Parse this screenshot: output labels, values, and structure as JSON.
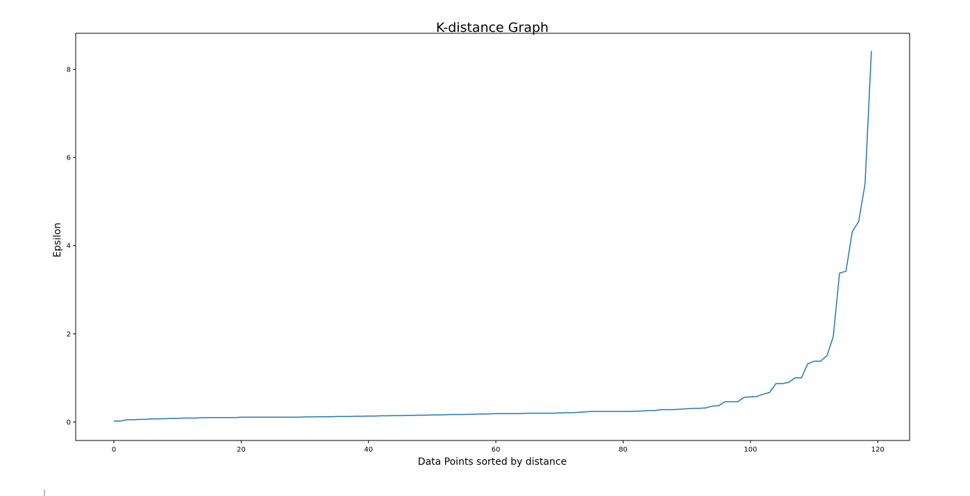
{
  "chart_data": {
    "type": "line",
    "title": "K-distance Graph",
    "xlabel": "Data Points sorted by distance",
    "ylabel": "Epsilon",
    "xlim": [
      -6,
      125
    ],
    "ylim": [
      -0.42,
      8.82
    ],
    "xticks": [
      0,
      20,
      40,
      60,
      80,
      100,
      120
    ],
    "yticks": [
      0,
      2,
      4,
      6,
      8
    ],
    "grid": false,
    "line_color": "#1f77b4",
    "series": [
      {
        "x": [
          0,
          1,
          2,
          3,
          4,
          5,
          6,
          7,
          8,
          9,
          10,
          11,
          12,
          13,
          14,
          15,
          16,
          17,
          18,
          19,
          20,
          21,
          22,
          23,
          24,
          25,
          26,
          27,
          28,
          29,
          30,
          31,
          32,
          33,
          34,
          35,
          36,
          37,
          38,
          39,
          40,
          41,
          42,
          43,
          44,
          45,
          46,
          47,
          48,
          49,
          50,
          51,
          52,
          53,
          54,
          55,
          56,
          57,
          58,
          59,
          60,
          61,
          62,
          63,
          64,
          65,
          66,
          67,
          68,
          69,
          70,
          71,
          72,
          73,
          74,
          75,
          76,
          77,
          78,
          79,
          80,
          81,
          82,
          83,
          84,
          85,
          86,
          87,
          88,
          89,
          90,
          91,
          92,
          93,
          94,
          95,
          96,
          97,
          98,
          99,
          100,
          101,
          102,
          103,
          104,
          105,
          106,
          107,
          108,
          109,
          110,
          111,
          112,
          113,
          114,
          115,
          116,
          117,
          118,
          119
        ],
        "y": [
          0.02,
          0.02,
          0.05,
          0.05,
          0.06,
          0.06,
          0.07,
          0.07,
          0.075,
          0.08,
          0.08,
          0.09,
          0.09,
          0.09,
          0.1,
          0.1,
          0.1,
          0.1,
          0.1,
          0.1,
          0.11,
          0.11,
          0.11,
          0.11,
          0.11,
          0.11,
          0.11,
          0.11,
          0.11,
          0.11,
          0.115,
          0.115,
          0.12,
          0.12,
          0.12,
          0.125,
          0.125,
          0.125,
          0.13,
          0.13,
          0.135,
          0.135,
          0.14,
          0.14,
          0.145,
          0.145,
          0.15,
          0.15,
          0.155,
          0.155,
          0.16,
          0.16,
          0.165,
          0.17,
          0.17,
          0.17,
          0.175,
          0.18,
          0.18,
          0.185,
          0.19,
          0.19,
          0.19,
          0.19,
          0.19,
          0.2,
          0.2,
          0.2,
          0.2,
          0.2,
          0.205,
          0.21,
          0.21,
          0.22,
          0.23,
          0.24,
          0.24,
          0.24,
          0.24,
          0.24,
          0.24,
          0.24,
          0.245,
          0.25,
          0.26,
          0.26,
          0.28,
          0.28,
          0.28,
          0.29,
          0.3,
          0.31,
          0.31,
          0.32,
          0.36,
          0.37,
          0.46,
          0.46,
          0.46,
          0.56,
          0.57,
          0.58,
          0.63,
          0.67,
          0.87,
          0.87,
          0.9,
          1.0,
          1.0,
          1.32,
          1.38,
          1.38,
          1.5,
          1.93,
          3.38,
          3.42,
          4.32,
          4.55,
          5.4,
          8.42
        ]
      }
    ]
  }
}
